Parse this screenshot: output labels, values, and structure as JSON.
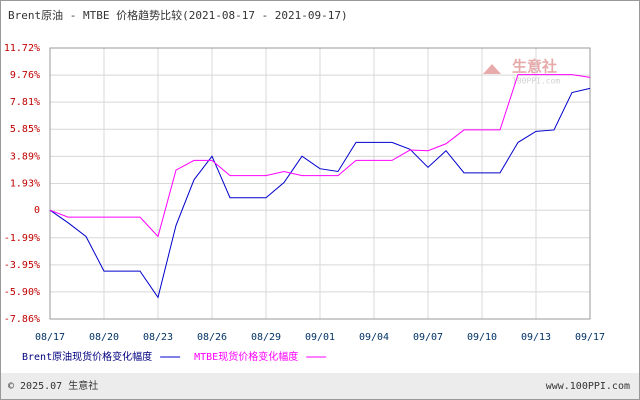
{
  "chart_data": {
    "type": "line",
    "title": "Brent原油 - MTBE 价格趋势比较(2021-08-17 - 2021-09-17)",
    "categories": [
      "08/17",
      null,
      null,
      "08/20",
      null,
      null,
      "08/23",
      null,
      null,
      "08/26",
      null,
      null,
      "08/29",
      null,
      null,
      "09/01",
      null,
      null,
      "09/04",
      null,
      null,
      "09/07",
      null,
      null,
      "09/10",
      null,
      null,
      "09/13",
      null,
      null,
      "09/17"
    ],
    "series": [
      {
        "name": "Brent原油现货价格变化幅度",
        "color": "#0000cc",
        "values": [
          0,
          -0.9,
          -1.9,
          -4.4,
          -4.4,
          -4.4,
          -6.3,
          -1.1,
          2.2,
          3.9,
          0.9,
          0.9,
          0.9,
          2.0,
          3.9,
          3.0,
          2.8,
          4.9,
          4.9,
          4.9,
          4.4,
          3.1,
          4.3,
          2.7,
          2.7,
          2.7,
          4.9,
          5.7,
          5.8,
          8.5,
          8.8
        ]
      },
      {
        "name": "MTBE现货价格变化幅度",
        "color": "#ff00ff",
        "values": [
          0,
          -0.5,
          -0.5,
          -0.5,
          -0.5,
          -0.5,
          -1.9,
          2.9,
          3.6,
          3.6,
          2.5,
          2.5,
          2.5,
          2.8,
          2.5,
          2.5,
          2.5,
          3.6,
          3.6,
          3.6,
          4.35,
          4.3,
          4.8,
          5.8,
          5.8,
          5.8,
          9.8,
          9.8,
          9.8,
          9.8,
          9.6
        ]
      }
    ],
    "ylim": [
      -7.86,
      11.72
    ],
    "yticks": [
      {
        "value": -7.86,
        "label": "-7.86%"
      },
      {
        "value": -5.9,
        "label": "-5.90%"
      },
      {
        "value": -3.95,
        "label": "-3.95%"
      },
      {
        "value": -1.99,
        "label": "-1.99%"
      },
      0,
      {
        "value": 1.93,
        "label": "1.93%"
      },
      {
        "value": 3.89,
        "label": "3.89%"
      },
      {
        "value": 5.85,
        "label": "5.85%"
      },
      {
        "value": 7.81,
        "label": "7.81%"
      },
      {
        "value": 9.76,
        "label": "9.76%"
      },
      {
        "value": 11.72,
        "label": "11.72%"
      }
    ],
    "grid": true
  },
  "watermark": {
    "name": "生意社",
    "site": "100PPI.com"
  },
  "footer": {
    "copyright": "© 2025.07 生意社",
    "site": "www.100PPI.com"
  }
}
